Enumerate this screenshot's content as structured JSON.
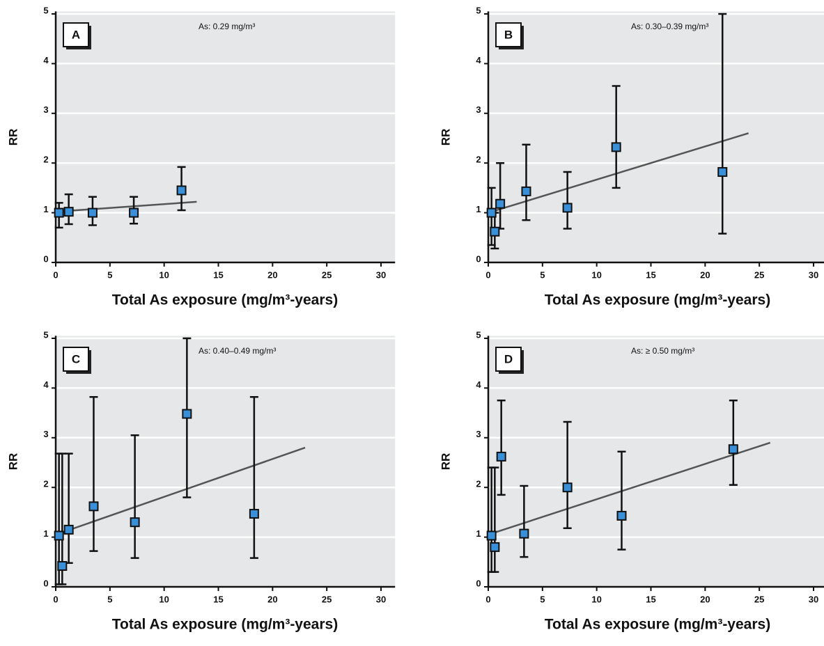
{
  "chart_data": [
    {
      "type": "scatter",
      "label": "A",
      "annotation": "As: 0.29 mg/m³",
      "x_label": "Total As exposure (mg/m³-years)",
      "y_label": "RR",
      "x": [
        0.3,
        1.2,
        3.4,
        7.2,
        11.6
      ],
      "values": [
        1.0,
        1.02,
        1.0,
        1.0,
        1.45
      ],
      "lower": [
        0.7,
        0.77,
        0.75,
        0.78,
        1.05
      ],
      "upper": [
        1.2,
        1.37,
        1.32,
        1.32,
        1.92
      ],
      "fit": {
        "x": [
          0,
          13
        ],
        "y": [
          1.02,
          1.22
        ]
      },
      "xlim": [
        0,
        31.3
      ],
      "ylim": [
        0,
        5.05
      ],
      "xticks": [
        0,
        5,
        10,
        15,
        20,
        25,
        30
      ],
      "yticks": [
        0,
        1,
        2,
        3,
        4,
        5
      ],
      "color": "#3a8fd9",
      "grid": true
    },
    {
      "type": "scatter",
      "label": "B",
      "annotation": "As: 0.30–0.39 mg/m³",
      "x_label": "Total As exposure (mg/m³-years)",
      "y_label": "RR",
      "x": [
        0.3,
        0.6,
        1.1,
        3.5,
        7.3,
        11.8,
        21.6
      ],
      "values": [
        1.0,
        0.62,
        1.18,
        1.43,
        1.1,
        2.32,
        1.82
      ],
      "lower": [
        0.35,
        0.28,
        0.68,
        0.85,
        0.68,
        1.5,
        0.58
      ],
      "upper": [
        1.5,
        1.0,
        2.0,
        2.37,
        1.82,
        3.55,
        5.0
      ],
      "fit": {
        "x": [
          0,
          24
        ],
        "y": [
          1.0,
          2.6
        ]
      },
      "xlim": [
        0,
        31.3
      ],
      "ylim": [
        0,
        5.05
      ],
      "xticks": [
        0,
        5,
        10,
        15,
        20,
        25,
        30
      ],
      "yticks": [
        0,
        1,
        2,
        3,
        4,
        5
      ],
      "color": "#3a8fd9",
      "grid": true
    },
    {
      "type": "scatter",
      "label": "C",
      "annotation": "As: 0.40–0.49 mg/m³",
      "x_label": "Total As exposure (mg/m³-years)",
      "y_label": "RR",
      "x": [
        0.3,
        0.6,
        1.2,
        3.5,
        7.3,
        12.1,
        18.3
      ],
      "values": [
        1.03,
        0.42,
        1.15,
        1.62,
        1.3,
        3.48,
        1.47
      ],
      "lower": [
        0.05,
        0.05,
        0.48,
        0.72,
        0.58,
        1.8,
        0.58
      ],
      "upper": [
        2.68,
        2.68,
        2.68,
        3.82,
        3.05,
        5.0,
        3.82
      ],
      "fit": {
        "x": [
          0,
          23
        ],
        "y": [
          1.05,
          2.8
        ]
      },
      "xlim": [
        0,
        31.3
      ],
      "ylim": [
        0,
        5.05
      ],
      "xticks": [
        0,
        5,
        10,
        15,
        20,
        25,
        30
      ],
      "yticks": [
        0,
        1,
        2,
        3,
        4,
        5
      ],
      "color": "#3a8fd9",
      "grid": true
    },
    {
      "type": "scatter",
      "label": "D",
      "annotation": "As: ≥ 0.50 mg/m³",
      "x_label": "Total As exposure (mg/m³-years)",
      "y_label": "RR",
      "x": [
        0.3,
        0.6,
        1.2,
        3.3,
        7.3,
        12.3,
        22.6
      ],
      "values": [
        1.03,
        0.8,
        2.62,
        1.07,
        2.0,
        1.43,
        2.77
      ],
      "lower": [
        0.3,
        0.3,
        1.85,
        0.6,
        1.18,
        0.75,
        2.05
      ],
      "upper": [
        2.4,
        2.4,
        3.75,
        2.03,
        3.32,
        2.72,
        3.75
      ],
      "fit": {
        "x": [
          0,
          26
        ],
        "y": [
          1.05,
          2.9
        ]
      },
      "xlim": [
        0,
        31.3
      ],
      "ylim": [
        0,
        5.05
      ],
      "xticks": [
        0,
        5,
        10,
        15,
        20,
        25,
        30
      ],
      "yticks": [
        0,
        1,
        2,
        3,
        4,
        5
      ],
      "color": "#3a8fd9",
      "grid": true
    }
  ]
}
